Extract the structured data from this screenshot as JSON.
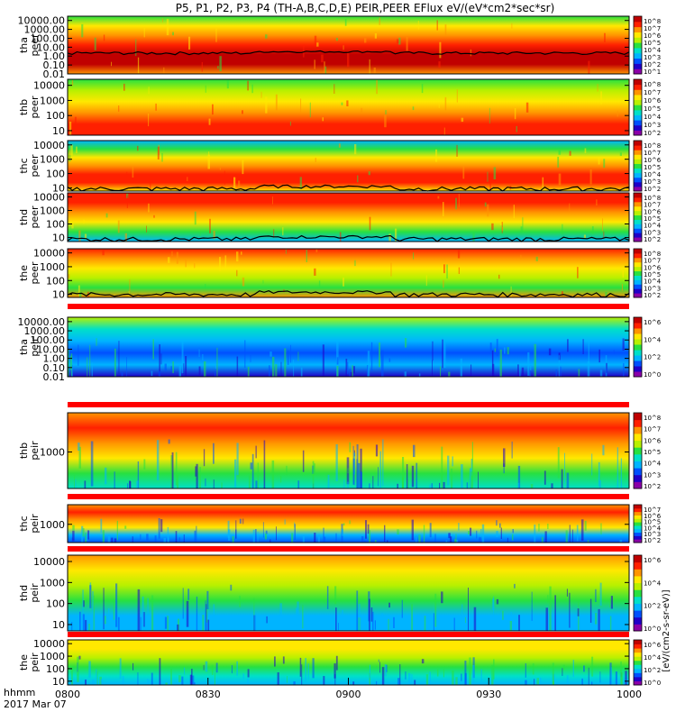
{
  "title": "P5, P1, P2, P3, P4 (TH-A,B,C,D,E) PEIR,PEER EFlux eV/(eV*cm2*sec*sr)",
  "colorbar_unit_label": "[eV/(cm2-s-sr-eV)]",
  "colorbar_scale": [
    "#8a00a8",
    "#2000c8",
    "#0050ff",
    "#00b4ff",
    "#00e0c8",
    "#28e040",
    "#b8f000",
    "#ffe800",
    "#ff9400",
    "#ff2000",
    "#c00000"
  ],
  "footer": {
    "label_line1": "hhmm",
    "label_line2": "2017 Mar 07"
  },
  "chart_data": {
    "type": "heatmap",
    "x_axis": {
      "range": [
        "0800",
        "1000"
      ],
      "ticks": [
        "0800",
        "0830",
        "0900",
        "0930",
        "1000"
      ]
    },
    "panels": [
      {
        "name": "tha peer",
        "ylabel_top": "tha",
        "ylabel_bottom": "peer",
        "y_ticks": [
          "10000.00",
          "1000.00",
          "100.00",
          "10.00",
          "1.00",
          "0.10",
          "0.01"
        ],
        "y_range": [
          0.01,
          30000
        ],
        "log": true,
        "colorbar_ticks": [
          "10^8",
          "10^7",
          "10^6",
          "10^5",
          "10^4",
          "10^3",
          "10^2",
          "10^1"
        ],
        "palette": [
          "#28e040",
          "#ffe800",
          "#ff9400",
          "#ff2000",
          "#c00000",
          "#c00000",
          "#ff9400"
        ],
        "trace": true,
        "trace_level": 2
      },
      {
        "name": "thb peer",
        "ylabel_top": "thb",
        "ylabel_bottom": "peer",
        "y_ticks": [
          "10000",
          "1000",
          "100",
          "10"
        ],
        "y_range": [
          5,
          25000
        ],
        "log": true,
        "colorbar_ticks": [
          "10^8",
          "10^7",
          "10^6",
          "10^5",
          "10^4",
          "10^3",
          "10^2"
        ],
        "palette": [
          "#28e040",
          "#b8f000",
          "#ffe800",
          "#ff9400",
          "#ff2000",
          "#ff2000"
        ],
        "trace": false
      },
      {
        "name": "thc peer",
        "ylabel_top": "thc",
        "ylabel_bottom": "peer",
        "y_ticks": [
          "10000",
          "1000",
          "100",
          "10"
        ],
        "y_range": [
          6,
          20000
        ],
        "log": true,
        "colorbar_ticks": [
          "10^8",
          "10^7",
          "10^6",
          "10^5",
          "10^4",
          "10^3",
          "10^2"
        ],
        "palette": [
          "#00b4ff",
          "#28e040",
          "#ffe800",
          "#ff9400",
          "#ff2000",
          "#ff2000",
          "#ffe800"
        ],
        "trace": true,
        "trace_level": 8
      },
      {
        "name": "thd peer",
        "ylabel_top": "thd",
        "ylabel_bottom": "peer",
        "y_ticks": [
          "10000",
          "1000",
          "100",
          "10"
        ],
        "y_range": [
          5,
          20000
        ],
        "log": true,
        "colorbar_ticks": [
          "10^8",
          "10^7",
          "10^6",
          "10^5",
          "10^4",
          "10^3",
          "10^2"
        ],
        "palette": [
          "#ff2000",
          "#ff2000",
          "#ff9400",
          "#ffe800",
          "#28e040",
          "#00b4ff"
        ],
        "trace": true,
        "trace_level": 7
      },
      {
        "name": "the peer",
        "ylabel_top": "the",
        "ylabel_bottom": "peer",
        "y_ticks": [
          "10000",
          "1000",
          "100",
          "10"
        ],
        "y_range": [
          6,
          20000
        ],
        "log": true,
        "colorbar_ticks": [
          "10^8",
          "10^7",
          "10^6",
          "10^5",
          "10^4",
          "10^3",
          "10^2"
        ],
        "palette": [
          "#ff2000",
          "#ff9400",
          "#ffe800",
          "#b8f000",
          "#28e040",
          "#ff9400"
        ],
        "trace": true,
        "trace_level": 9
      },
      {
        "name": "tha peir",
        "ylabel_top": "tha",
        "ylabel_bottom": "peir",
        "y_ticks": [
          "10000.00",
          "1000.00",
          "100.00",
          "10.00",
          "1.00",
          "0.10",
          "0.01"
        ],
        "y_range": [
          0.01,
          30000
        ],
        "log": true,
        "colorbar_ticks": [
          "10^6",
          "10^4",
          "10^2",
          "10^0"
        ],
        "palette": [
          "#b8f000",
          "#00e0c8",
          "#00b4ff",
          "#0050ff",
          "#00b4ff",
          "#2000c8"
        ],
        "trace": false
      },
      {
        "name": "thb peir",
        "ylabel_top": "thb",
        "ylabel_bottom": "peir",
        "y_ticks": [
          "1000"
        ],
        "y_range": [
          50,
          25000
        ],
        "log": true,
        "colorbar_ticks": [
          "10^8",
          "10^7",
          "10^6",
          "10^5",
          "10^4",
          "10^3",
          "10^2"
        ],
        "palette": [
          "#ff9400",
          "#ff2000",
          "#ff9400",
          "#ffe800",
          "#28e040",
          "#00e0c8"
        ],
        "trace": false
      },
      {
        "name": "thc peir",
        "ylabel_top": "thc",
        "ylabel_bottom": "peir",
        "y_ticks": [
          "1000"
        ],
        "y_range": [
          50,
          25000
        ],
        "log": true,
        "colorbar_ticks": [
          "10^7",
          "10^6",
          "10^5",
          "10^4",
          "10^3",
          "10^2"
        ],
        "palette": [
          "#ff9400",
          "#ff2000",
          "#ff9400",
          "#ffe800",
          "#00b4ff",
          "#0050ff"
        ],
        "trace": false
      },
      {
        "name": "thd peir",
        "ylabel_top": "thd",
        "ylabel_bottom": "peir",
        "y_ticks": [
          "10000",
          "1000",
          "100",
          "10"
        ],
        "y_range": [
          5,
          20000
        ],
        "log": true,
        "colorbar_ticks": [
          "10^6",
          "10^4",
          "10^2",
          "10^0"
        ],
        "palette": [
          "#ff9400",
          "#ffe800",
          "#b8f000",
          "#28e040",
          "#00b4ff",
          "#00b4ff"
        ],
        "trace": false
      },
      {
        "name": "the peir",
        "ylabel_top": "the",
        "ylabel_bottom": "peir",
        "y_ticks": [
          "10000",
          "1000",
          "100",
          "10"
        ],
        "y_range": [
          5,
          20000
        ],
        "log": true,
        "colorbar_ticks": [
          "10^6",
          "10^4",
          "10^2",
          "10^0"
        ],
        "palette": [
          "#ffe800",
          "#ffe800",
          "#b8f000",
          "#28e040",
          "#00e0c8",
          "#00b4ff"
        ],
        "trace": false
      }
    ]
  }
}
